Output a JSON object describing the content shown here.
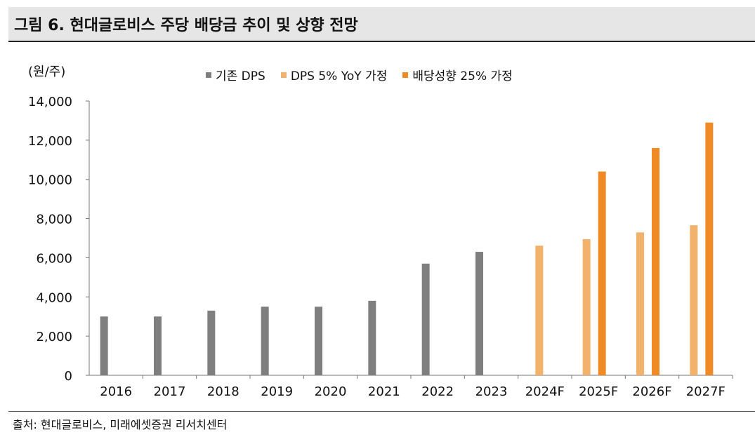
{
  "header": {
    "title": "그림 6. 현대글로비스 주당 배당금 추이 및 상향 전망"
  },
  "unit_label": "(원/주)",
  "source": "출처: 현대글로비스, 미래에셋증권 리서치센터",
  "colors": {
    "gray": "#7f7f7f",
    "light_orange": "#f2b26b",
    "orange": "#f08a24",
    "axis": "#777777"
  },
  "chart_data": {
    "type": "bar",
    "categories": [
      "2016",
      "2017",
      "2018",
      "2019",
      "2020",
      "2021",
      "2022",
      "2023",
      "2024F",
      "2025F",
      "2026F",
      "2027F"
    ],
    "series": [
      {
        "name": "기존 DPS",
        "color": "#7f7f7f",
        "values": [
          3000,
          3000,
          3300,
          3500,
          3500,
          3800,
          5700,
          6300,
          null,
          null,
          null,
          null
        ]
      },
      {
        "name": "DPS 5% YoY 가정",
        "color": "#f2b26b",
        "values": [
          null,
          null,
          null,
          null,
          null,
          null,
          null,
          null,
          6615,
          6946,
          7293,
          7658
        ]
      },
      {
        "name": "배당성향 25% 가정",
        "color": "#f08a24",
        "values": [
          null,
          null,
          null,
          null,
          null,
          null,
          null,
          null,
          null,
          10400,
          11600,
          12900
        ]
      }
    ],
    "ylim": [
      0,
      14000
    ],
    "yticks": [
      "0",
      "2,000",
      "4,000",
      "6,000",
      "8,000",
      "10,000",
      "12,000",
      "14,000"
    ],
    "ytick_values": [
      0,
      2000,
      4000,
      6000,
      8000,
      10000,
      12000,
      14000
    ],
    "legend_position": "top",
    "grid": false
  }
}
